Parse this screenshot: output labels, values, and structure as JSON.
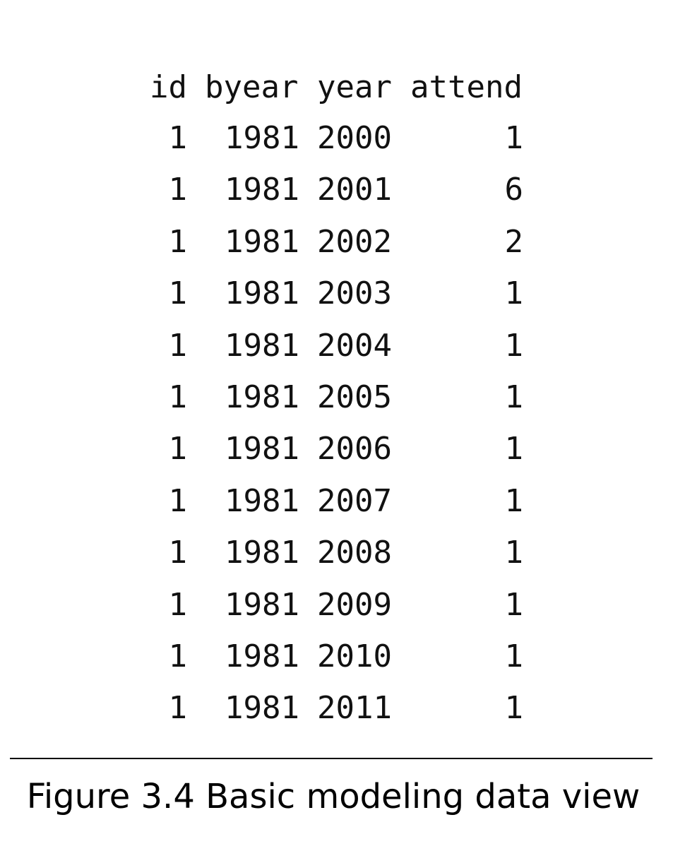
{
  "table": {
    "columns": [
      "id",
      "byear",
      "year",
      "attend"
    ],
    "rows": [
      [
        "1",
        "1981",
        "2000",
        "1"
      ],
      [
        "1",
        "1981",
        "2001",
        "6"
      ],
      [
        "1",
        "1981",
        "2002",
        "2"
      ],
      [
        "1",
        "1981",
        "2003",
        "1"
      ],
      [
        "1",
        "1981",
        "2004",
        "1"
      ],
      [
        "1",
        "1981",
        "2005",
        "1"
      ],
      [
        "1",
        "1981",
        "2006",
        "1"
      ],
      [
        "1",
        "1981",
        "2007",
        "1"
      ],
      [
        "1",
        "1981",
        "2008",
        "1"
      ],
      [
        "1",
        "1981",
        "2009",
        "1"
      ],
      [
        "1",
        "1981",
        "2010",
        "1"
      ],
      [
        "1",
        "1981",
        "2011",
        "1"
      ]
    ]
  },
  "caption": "Figure 3.4 Basic modeling data view"
}
